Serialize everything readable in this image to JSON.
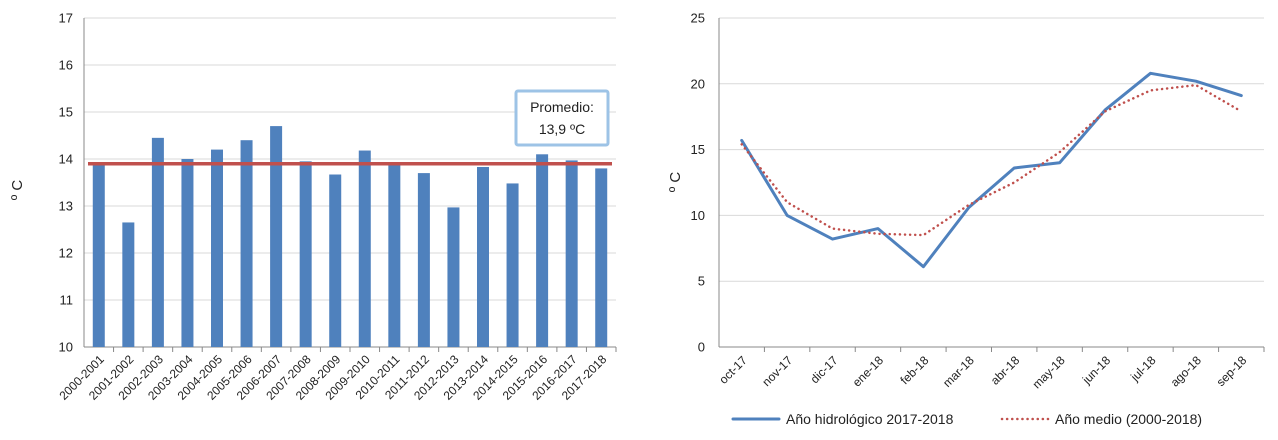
{
  "chart_data": [
    {
      "type": "bar",
      "ylabel": "º C",
      "ylim": [
        10,
        17
      ],
      "yticks": [
        10,
        11,
        12,
        13,
        14,
        15,
        16,
        17
      ],
      "grid": true,
      "categories": [
        "2000-2001",
        "2001-2002",
        "2002-2003",
        "2003-2004",
        "2004-2005",
        "2005-2006",
        "2006-2007",
        "2007-2008",
        "2008-2009",
        "2009-2010",
        "2010-2011",
        "2011-2012",
        "2012-2013",
        "2013-2014",
        "2014-2015",
        "2015-2016",
        "2016-2017",
        "2017-2018"
      ],
      "values": [
        13.9,
        12.65,
        14.45,
        14.0,
        14.2,
        14.4,
        14.7,
        13.95,
        13.67,
        14.18,
        13.9,
        13.7,
        12.97,
        13.83,
        13.48,
        14.1,
        13.97,
        13.8
      ],
      "bar_color": "#4f81bd",
      "reference_line": {
        "value": 13.9,
        "color": "#c0504d"
      },
      "annotation": {
        "line1": "Promedio:",
        "line2": "13,9 ºC"
      }
    },
    {
      "type": "line",
      "ylabel": "º C",
      "ylim": [
        0,
        25
      ],
      "yticks": [
        0,
        5,
        10,
        15,
        20,
        25
      ],
      "grid": true,
      "categories": [
        "oct-17",
        "nov-17",
        "dic-17",
        "ene-18",
        "feb-18",
        "mar-18",
        "abr-18",
        "may-18",
        "jun-18",
        "jul-18",
        "ago-18",
        "sep-18"
      ],
      "series": [
        {
          "name": "Año hidrológico 2017-2018",
          "values": [
            15.7,
            10.0,
            8.2,
            9.0,
            6.1,
            10.6,
            13.6,
            14.0,
            18.0,
            20.8,
            20.2,
            19.1
          ],
          "color": "#4f81bd",
          "style": "solid"
        },
        {
          "name": "Año medio (2000-2018)",
          "values": [
            15.4,
            11.0,
            9.0,
            8.6,
            8.5,
            10.8,
            12.5,
            14.8,
            17.9,
            19.5,
            19.9,
            17.9
          ],
          "color": "#c0504d",
          "style": "dotted"
        }
      ],
      "legend": "bottom"
    }
  ]
}
